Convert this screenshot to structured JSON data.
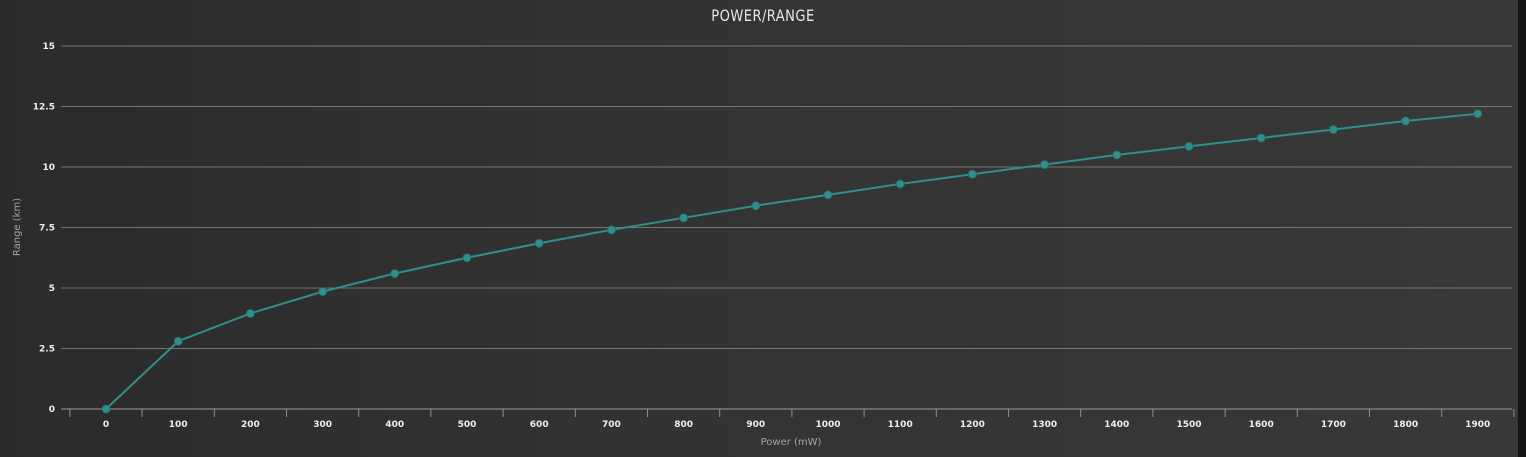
{
  "chart_data": {
    "type": "line",
    "title": "POWER/RANGE",
    "xlabel": "Power (mW)",
    "ylabel": "Range (km)",
    "x": [
      0,
      100,
      200,
      300,
      400,
      500,
      600,
      700,
      800,
      900,
      1000,
      1100,
      1200,
      1300,
      1400,
      1500,
      1600,
      1700,
      1800,
      1900
    ],
    "series": [
      {
        "values": [
          0,
          2.8,
          3.95,
          4.85,
          5.6,
          6.25,
          6.85,
          7.4,
          7.9,
          8.4,
          8.85,
          9.3,
          9.7,
          10.1,
          10.5,
          10.85,
          11.2,
          11.55,
          11.9,
          12.2
        ]
      }
    ],
    "ylim": [
      0,
      15
    ],
    "yticks": [
      "0",
      "2.5",
      "5",
      "7.5",
      "10",
      "12.5",
      "15"
    ],
    "xticks": [
      "0",
      "100",
      "200",
      "300",
      "400",
      "500",
      "600",
      "700",
      "800",
      "900",
      "1000",
      "1100",
      "1200",
      "1300",
      "1400",
      "1500",
      "1600",
      "1700",
      "1800",
      "1900"
    ],
    "grid": true,
    "colors": {
      "series": "#2f8f8c",
      "grid": "#8b8b8b",
      "text": "#efefef"
    }
  }
}
